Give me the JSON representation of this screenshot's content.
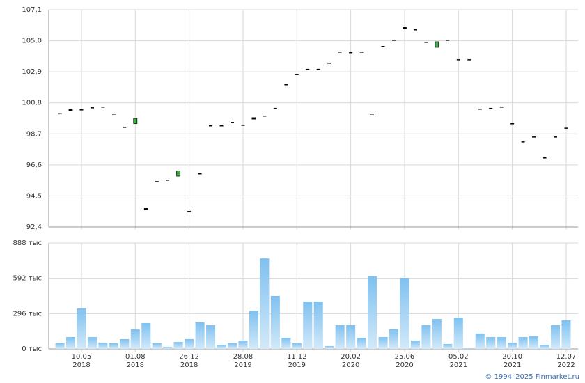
{
  "chart_data": [
    {
      "type": "candlestick",
      "open": [
        100.1,
        100.35,
        100.36,
        100.5,
        100.55,
        100.08,
        99.18,
        99.4,
        93.65,
        95.5,
        95.6,
        95.84,
        93.48,
        96.03,
        99.28,
        99.28,
        99.51,
        99.32,
        99.8,
        99.94,
        100.46,
        102.06,
        102.76,
        103.1,
        103.1,
        103.52,
        104.27,
        104.23,
        104.27,
        100.08,
        104.65,
        105.07,
        105.9,
        105.78,
        104.93,
        104.56,
        105.07,
        103.75,
        103.75,
        100.41,
        100.46,
        100.55,
        99.42,
        98.19,
        98.52,
        97.11,
        98.52,
        99.12
      ],
      "close": [
        100.1,
        100.25,
        100.36,
        100.5,
        100.55,
        100.08,
        99.18,
        99.75,
        93.55,
        95.5,
        95.6,
        96.2,
        93.48,
        96.03,
        99.28,
        99.28,
        99.51,
        99.32,
        99.7,
        99.94,
        100.46,
        102.06,
        102.76,
        103.1,
        103.1,
        103.52,
        104.27,
        104.23,
        104.27,
        100.08,
        104.65,
        105.07,
        105.82,
        105.78,
        104.93,
        104.93,
        105.07,
        103.75,
        103.75,
        100.41,
        100.46,
        100.55,
        99.42,
        98.19,
        98.52,
        97.11,
        98.52,
        99.05
      ],
      "up_color": "#3cb043",
      "down_color": "#000000",
      "ylim": [
        92.4,
        107.1
      ],
      "yticks": [
        {
          "value": 92.4,
          "label": "92,4"
        },
        {
          "value": 94.5,
          "label": "94,5"
        },
        {
          "value": 96.6,
          "label": "96,6"
        },
        {
          "value": 98.7,
          "label": "98,7"
        },
        {
          "value": 100.8,
          "label": "100,8"
        },
        {
          "value": 102.9,
          "label": "102,9"
        },
        {
          "value": 105.0,
          "label": "105,0"
        },
        {
          "value": 107.1,
          "label": "107,1"
        }
      ],
      "grid": true
    },
    {
      "type": "bar",
      "categories": [
        null,
        null,
        "10.05\n2018",
        null,
        null,
        null,
        null,
        "01.08\n2018",
        null,
        null,
        null,
        null,
        "26.12\n2018",
        null,
        null,
        null,
        null,
        "28.08\n2019",
        null,
        null,
        null,
        null,
        "11.12\n2019",
        null,
        null,
        null,
        null,
        "20.02\n2020",
        null,
        null,
        null,
        null,
        "25.06\n2020",
        null,
        null,
        null,
        null,
        "05.02\n2021",
        null,
        null,
        null,
        null,
        "20.10\n2021",
        null,
        null,
        null,
        null,
        "12.07\n2022"
      ],
      "values": [
        47,
        99,
        339,
        99,
        53,
        47,
        82,
        164,
        216,
        47,
        18,
        58,
        82,
        222,
        199,
        35,
        47,
        70,
        321,
        759,
        444,
        93,
        47,
        397,
        397,
        23,
        199,
        199,
        93,
        608,
        99,
        164,
        596,
        70,
        199,
        251,
        41,
        263,
        6,
        129,
        99,
        99,
        53,
        99,
        105,
        35,
        199,
        240
      ],
      "color": "#7fc1f0",
      "ylim": [
        0,
        888
      ],
      "yticks": [
        {
          "value": 0,
          "label": "0 тыс"
        },
        {
          "value": 296,
          "label": "296 тыс"
        },
        {
          "value": 592,
          "label": "592 тыс"
        },
        {
          "value": 888,
          "label": "888 тыс"
        }
      ],
      "grid": true
    }
  ],
  "footer": "© 1994–2025 Finmarket.ru"
}
